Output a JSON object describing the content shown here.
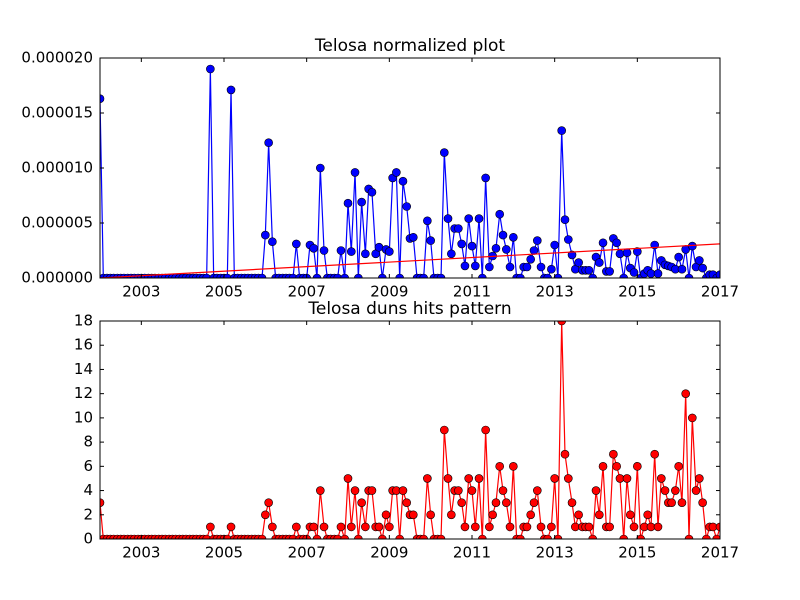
{
  "chart_data": [
    {
      "type": "line",
      "title": "Telosa normalized plot",
      "x": [
        2002,
        2002.08,
        2002.17,
        2002.25,
        2002.33,
        2002.42,
        2002.5,
        2002.58,
        2002.67,
        2002.75,
        2002.83,
        2002.92,
        2003,
        2003.08,
        2003.17,
        2003.25,
        2003.33,
        2003.42,
        2003.5,
        2003.58,
        2003.67,
        2003.75,
        2003.83,
        2003.92,
        2004,
        2004.08,
        2004.17,
        2004.25,
        2004.33,
        2004.42,
        2004.5,
        2004.58,
        2004.67,
        2004.75,
        2004.83,
        2004.92,
        2005,
        2005.08,
        2005.17,
        2005.25,
        2005.33,
        2005.42,
        2005.5,
        2005.58,
        2005.67,
        2005.75,
        2005.83,
        2005.92,
        2006,
        2006.08,
        2006.17,
        2006.25,
        2006.33,
        2006.42,
        2006.5,
        2006.58,
        2006.67,
        2006.75,
        2006.83,
        2006.92,
        2007,
        2007.08,
        2007.17,
        2007.25,
        2007.33,
        2007.42,
        2007.5,
        2007.58,
        2007.67,
        2007.75,
        2007.83,
        2007.92,
        2008,
        2008.08,
        2008.17,
        2008.25,
        2008.33,
        2008.42,
        2008.5,
        2008.58,
        2008.67,
        2008.75,
        2008.83,
        2008.92,
        2009,
        2009.08,
        2009.17,
        2009.25,
        2009.33,
        2009.42,
        2009.5,
        2009.58,
        2009.67,
        2009.75,
        2009.83,
        2009.92,
        2010,
        2010.08,
        2010.17,
        2010.25,
        2010.33,
        2010.42,
        2010.5,
        2010.58,
        2010.67,
        2010.75,
        2010.83,
        2010.92,
        2011,
        2011.08,
        2011.17,
        2011.25,
        2011.33,
        2011.42,
        2011.5,
        2011.58,
        2011.67,
        2011.75,
        2011.83,
        2011.92,
        2012,
        2012.08,
        2012.17,
        2012.25,
        2012.33,
        2012.42,
        2012.5,
        2012.58,
        2012.67,
        2012.75,
        2012.83,
        2012.92,
        2013,
        2013.08,
        2013.17,
        2013.25,
        2013.33,
        2013.42,
        2013.5,
        2013.58,
        2013.67,
        2013.75,
        2013.83,
        2013.92,
        2014,
        2014.08,
        2014.17,
        2014.25,
        2014.33,
        2014.42,
        2014.5,
        2014.58,
        2014.67,
        2014.75,
        2014.83,
        2014.92,
        2015,
        2015.08,
        2015.17,
        2015.25,
        2015.33,
        2015.42,
        2015.5,
        2015.58,
        2015.67,
        2015.75,
        2015.83,
        2015.92,
        2016,
        2016.08,
        2016.17,
        2016.25,
        2016.33,
        2016.42,
        2016.5,
        2016.58,
        2016.67,
        2016.75,
        2016.83,
        2016.92,
        2017
      ],
      "series": [
        {
          "color": "#0000ff",
          "marker": true,
          "values": [
            1.63e-05,
            0,
            0,
            0,
            0,
            0,
            0,
            0,
            0,
            0,
            0,
            0,
            0,
            0,
            0,
            0,
            0,
            0,
            0,
            0,
            0,
            0,
            0,
            0,
            0,
            0,
            0,
            0,
            0,
            0,
            0,
            0,
            1.9e-05,
            0,
            0,
            0,
            0,
            0,
            1.71e-05,
            0,
            0,
            0,
            0,
            0,
            0,
            0,
            0,
            0,
            3.9e-06,
            1.23e-05,
            3.3e-06,
            0,
            0,
            0,
            0,
            0,
            0,
            3.1e-06,
            0,
            0,
            0,
            3e-06,
            2.7e-06,
            0,
            1e-05,
            2.5e-06,
            0,
            0,
            0,
            0,
            2.5e-06,
            0,
            6.8e-06,
            2.4e-06,
            9.6e-06,
            0,
            6.9e-06,
            2.2e-06,
            8.1e-06,
            7.8e-06,
            2.2e-06,
            2.8e-06,
            0,
            2.6e-06,
            2.4e-06,
            9.1e-06,
            9.6e-06,
            0,
            8.8e-06,
            6.5e-06,
            3.6e-06,
            3.7e-06,
            0,
            0,
            0,
            5.2e-06,
            3.4e-06,
            0,
            0,
            0,
            1.14e-05,
            5.4e-06,
            2.2e-06,
            4.5e-06,
            4.5e-06,
            3.1e-06,
            1.1e-06,
            5.4e-06,
            2.9e-06,
            1.1e-06,
            5.4e-06,
            0,
            9.1e-06,
            1e-06,
            2e-06,
            2.7e-06,
            5.8e-06,
            3.9e-06,
            2.6e-06,
            1e-06,
            3.7e-06,
            0,
            0,
            1e-06,
            1e-06,
            1.7e-06,
            2.5e-06,
            3.4e-06,
            1e-06,
            0,
            0,
            8e-07,
            3e-06,
            0,
            1.34e-05,
            5.3e-06,
            3.5e-06,
            2.1e-06,
            8e-07,
            1.4e-06,
            7e-07,
            7e-07,
            7e-07,
            0,
            1.9e-06,
            1.4e-06,
            3.2e-06,
            6e-07,
            6e-07,
            3.6e-06,
            3.2e-06,
            2.2e-06,
            0,
            2.3e-06,
            9e-07,
            5e-07,
            2.4e-06,
            0,
            4e-07,
            7e-07,
            4e-07,
            3e-06,
            4e-07,
            1.6e-06,
            1.2e-06,
            1.1e-06,
            1e-06,
            8e-07,
            1.9e-06,
            8e-07,
            2.6e-06,
            0,
            2.9e-06,
            1e-06,
            1.6e-06,
            9e-07,
            0,
            3e-07,
            3e-07,
            0,
            3e-07
          ]
        },
        {
          "color": "#ff0000",
          "marker": false,
          "x": [
            2002,
            2017
          ],
          "values": [
            0,
            3.1e-06
          ]
        }
      ],
      "xlim": [
        2002,
        2017
      ],
      "xticks": [
        2003,
        2005,
        2007,
        2009,
        2011,
        2013,
        2015,
        2017
      ],
      "ylim": [
        0,
        2e-05
      ],
      "yticks": [
        {
          "value": 0,
          "label": "0.000000"
        },
        {
          "value": 5e-06,
          "label": "0.000005"
        },
        {
          "value": 1e-05,
          "label": "0.000010"
        },
        {
          "value": 1.5e-05,
          "label": "0.000015"
        },
        {
          "value": 2e-05,
          "label": "0.000020"
        }
      ]
    },
    {
      "type": "line",
      "title": "Telosa duns hits pattern",
      "x": [
        2002,
        2002.08,
        2002.17,
        2002.25,
        2002.33,
        2002.42,
        2002.5,
        2002.58,
        2002.67,
        2002.75,
        2002.83,
        2002.92,
        2003,
        2003.08,
        2003.17,
        2003.25,
        2003.33,
        2003.42,
        2003.5,
        2003.58,
        2003.67,
        2003.75,
        2003.83,
        2003.92,
        2004,
        2004.08,
        2004.17,
        2004.25,
        2004.33,
        2004.42,
        2004.5,
        2004.58,
        2004.67,
        2004.75,
        2004.83,
        2004.92,
        2005,
        2005.08,
        2005.17,
        2005.25,
        2005.33,
        2005.42,
        2005.5,
        2005.58,
        2005.67,
        2005.75,
        2005.83,
        2005.92,
        2006,
        2006.08,
        2006.17,
        2006.25,
        2006.33,
        2006.42,
        2006.5,
        2006.58,
        2006.67,
        2006.75,
        2006.83,
        2006.92,
        2007,
        2007.08,
        2007.17,
        2007.25,
        2007.33,
        2007.42,
        2007.5,
        2007.58,
        2007.67,
        2007.75,
        2007.83,
        2007.92,
        2008,
        2008.08,
        2008.17,
        2008.25,
        2008.33,
        2008.42,
        2008.5,
        2008.58,
        2008.67,
        2008.75,
        2008.83,
        2008.92,
        2009,
        2009.08,
        2009.17,
        2009.25,
        2009.33,
        2009.42,
        2009.5,
        2009.58,
        2009.67,
        2009.75,
        2009.83,
        2009.92,
        2010,
        2010.08,
        2010.17,
        2010.25,
        2010.33,
        2010.42,
        2010.5,
        2010.58,
        2010.67,
        2010.75,
        2010.83,
        2010.92,
        2011,
        2011.08,
        2011.17,
        2011.25,
        2011.33,
        2011.42,
        2011.5,
        2011.58,
        2011.67,
        2011.75,
        2011.83,
        2011.92,
        2012,
        2012.08,
        2012.17,
        2012.25,
        2012.33,
        2012.42,
        2012.5,
        2012.58,
        2012.67,
        2012.75,
        2012.83,
        2012.92,
        2013,
        2013.08,
        2013.17,
        2013.25,
        2013.33,
        2013.42,
        2013.5,
        2013.58,
        2013.67,
        2013.75,
        2013.83,
        2013.92,
        2014,
        2014.08,
        2014.17,
        2014.25,
        2014.33,
        2014.42,
        2014.5,
        2014.58,
        2014.67,
        2014.75,
        2014.83,
        2014.92,
        2015,
        2015.08,
        2015.17,
        2015.25,
        2015.33,
        2015.42,
        2015.5,
        2015.58,
        2015.67,
        2015.75,
        2015.83,
        2015.92,
        2016,
        2016.08,
        2016.17,
        2016.25,
        2016.33,
        2016.42,
        2016.5,
        2016.58,
        2016.67,
        2016.75,
        2016.83,
        2016.92,
        2017
      ],
      "series": [
        {
          "color": "#ff0000",
          "marker": true,
          "values": [
            3,
            0,
            0,
            0,
            0,
            0,
            0,
            0,
            0,
            0,
            0,
            0,
            0,
            0,
            0,
            0,
            0,
            0,
            0,
            0,
            0,
            0,
            0,
            0,
            0,
            0,
            0,
            0,
            0,
            0,
            0,
            0,
            1,
            0,
            0,
            0,
            0,
            0,
            1,
            0,
            0,
            0,
            0,
            0,
            0,
            0,
            0,
            0,
            2,
            3,
            1,
            0,
            0,
            0,
            0,
            0,
            0,
            1,
            0,
            0,
            0,
            1,
            1,
            0,
            4,
            1,
            0,
            0,
            0,
            0,
            1,
            0,
            5,
            1,
            4,
            0,
            3,
            1,
            4,
            4,
            1,
            1,
            0,
            2,
            1,
            4,
            4,
            0,
            4,
            3,
            2,
            2,
            0,
            0,
            0,
            5,
            2,
            0,
            0,
            0,
            9,
            5,
            2,
            4,
            4,
            3,
            1,
            5,
            4,
            1,
            5,
            0,
            9,
            1,
            2,
            3,
            6,
            4,
            3,
            1,
            6,
            0,
            0,
            1,
            1,
            2,
            3,
            4,
            1,
            0,
            0,
            1,
            5,
            0,
            18,
            7,
            5,
            3,
            1,
            2,
            1,
            1,
            1,
            0,
            4,
            2,
            6,
            1,
            1,
            7,
            6,
            5,
            0,
            5,
            2,
            1,
            6,
            0,
            1,
            2,
            1,
            7,
            1,
            5,
            4,
            3,
            3,
            4,
            6,
            3,
            12,
            0,
            10,
            4,
            5,
            3,
            0,
            1,
            1,
            0,
            1
          ]
        }
      ],
      "xlim": [
        2002,
        2017
      ],
      "xticks": [
        2003,
        2005,
        2007,
        2009,
        2011,
        2013,
        2015,
        2017
      ],
      "ylim": [
        0,
        18
      ],
      "yticks": [
        0,
        2,
        4,
        6,
        8,
        10,
        12,
        14,
        16,
        18
      ]
    }
  ]
}
